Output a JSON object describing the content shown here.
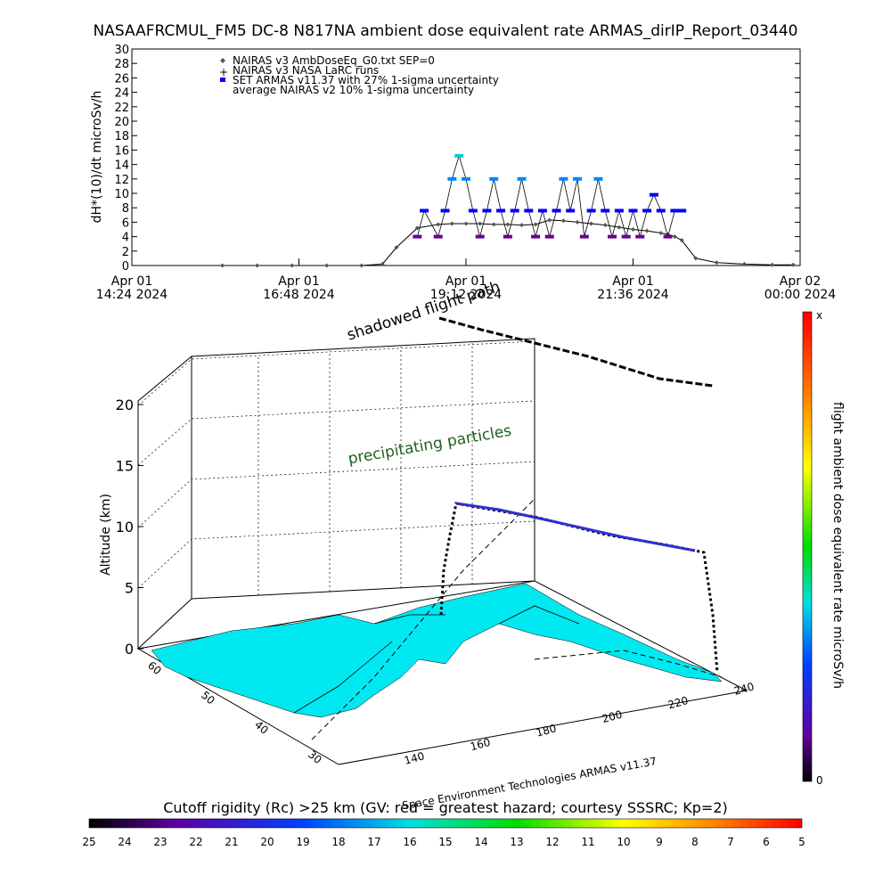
{
  "header": {
    "title": "NASAAFRCMUL_FM5 DC-8   N817NA ambient dose equivalent rate ARMAS_dirIP_Report_03440"
  },
  "chart_data": [
    {
      "type": "scatter",
      "title": "NASAAFRCMUL_FM5 DC-8   N817NA ambient dose equivalent rate ARMAS_dirIP_Report_03440",
      "ylabel": "dH*(10)/dt microSv/h",
      "ylim": [
        0,
        30
      ],
      "yticks": [
        0,
        2,
        4,
        6,
        8,
        10,
        12,
        14,
        16,
        18,
        20,
        22,
        24,
        26,
        28,
        30
      ],
      "xticks": [
        {
          "line1": "Apr 01",
          "line2": "14:24 2024",
          "t": 14.4
        },
        {
          "line1": "Apr 01",
          "line2": "16:48 2024",
          "t": 16.8
        },
        {
          "line1": "Apr 01",
          "line2": "19:12 2024",
          "t": 19.2
        },
        {
          "line1": "Apr 01",
          "line2": "21:36 2024",
          "t": 21.6
        },
        {
          "line1": "Apr 02",
          "line2": "00:00 2024",
          "t": 24.0
        }
      ],
      "xlim": [
        14.4,
        24.0
      ],
      "legend": [
        {
          "symbol": "diamond",
          "color": "#000000",
          "text": "NAIRAS v3 AmbDoseEq_G0.txt SEP=0"
        },
        {
          "symbol": "plus",
          "color": "#000000",
          "text": "NAIRAS v3 NASA LaRC runs"
        },
        {
          "symbol": "square",
          "color": "#0000ff",
          "text": "SET ARMAS v11.37 with 27% 1-sigma uncertainty"
        },
        {
          "symbol": "none",
          "color": "#000000",
          "text": "average NAIRAS v2 10% 1-sigma uncertainty"
        }
      ],
      "series": [
        {
          "name": "NAIRAS v3 AmbDoseEq_G0.txt SEP=0",
          "color": "#000000",
          "x": [
            15.7,
            16.2,
            16.7,
            17.2,
            17.7,
            18.0,
            18.2,
            18.5,
            18.8,
            19.0,
            19.2,
            19.4,
            19.6,
            19.8,
            20.0,
            20.2,
            20.4,
            20.6,
            20.8,
            21.0,
            21.2,
            21.4,
            21.6,
            21.8,
            22.0,
            22.1,
            22.2,
            22.3,
            22.5,
            22.8,
            23.2,
            23.6,
            23.9
          ],
          "y": [
            0,
            0,
            0,
            0,
            0,
            0.2,
            2.5,
            5.2,
            5.7,
            5.8,
            5.8,
            5.8,
            5.7,
            5.7,
            5.6,
            5.7,
            6.3,
            6.2,
            6.0,
            5.8,
            5.6,
            5.3,
            5.0,
            4.8,
            4.5,
            4.3,
            4.0,
            3.5,
            1.0,
            0.4,
            0.2,
            0.1,
            0.1
          ]
        },
        {
          "name": "SET ARMAS v11.37 with 27% 1-sigma uncertainty",
          "color": "#0000ff",
          "x": [
            18.5,
            18.6,
            18.8,
            18.9,
            19.0,
            19.1,
            19.2,
            19.3,
            19.4,
            19.5,
            19.6,
            19.7,
            19.8,
            19.9,
            20.0,
            20.1,
            20.2,
            20.3,
            20.4,
            20.5,
            20.6,
            20.7,
            20.8,
            20.9,
            21.0,
            21.1,
            21.2,
            21.3,
            21.4,
            21.5,
            21.6,
            21.7,
            21.8,
            21.9,
            22.0,
            22.1,
            22.2,
            22.3
          ],
          "y": [
            4,
            7.6,
            4,
            7.6,
            12,
            15.2,
            12,
            7.6,
            4,
            7.6,
            12,
            7.6,
            4,
            7.6,
            12,
            7.6,
            4,
            7.6,
            4,
            7.6,
            12,
            7.6,
            12,
            4,
            7.6,
            12,
            7.6,
            4,
            7.6,
            4,
            7.6,
            4,
            7.6,
            9.8,
            7.6,
            4,
            7.6,
            7.6
          ]
        }
      ]
    },
    {
      "type": "3d-surface",
      "zlabel": "Altitude (km)",
      "zticks": [
        0,
        5,
        10,
        15,
        20
      ],
      "x_ticks": [
        140,
        160,
        180,
        200,
        220,
        240
      ],
      "y_ticks": [
        30,
        40,
        50,
        60
      ],
      "annotations": [
        "shadowed flight path",
        "precipitating particles"
      ],
      "credit": "Space Environment Technologies ARMAS v11.37",
      "colorbar": {
        "label": "flight ambient dose equivalent rate microSv/h",
        "top": "x",
        "bottom": "0"
      },
      "bottom_bar": {
        "label": "Cutoff rigidity (Rc) >25 km (GV: red = greatest hazard; courtesy SSSRC; Kp=2)",
        "ticks": [
          25,
          24,
          23,
          22,
          21,
          20,
          19,
          18,
          17,
          16,
          15,
          14,
          13,
          12,
          11,
          10,
          9,
          8,
          7,
          6,
          5
        ]
      }
    }
  ]
}
